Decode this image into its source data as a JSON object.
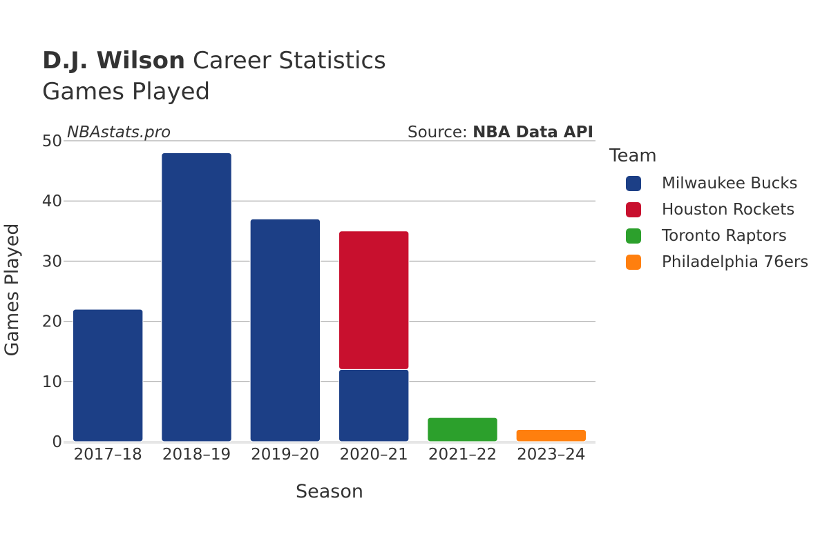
{
  "header": {
    "player_name": "D.J. Wilson",
    "title_rest": "Career Statistics",
    "subtitle": "Games Played",
    "watermark": "NBAstats.pro",
    "source_prefix": "Source:",
    "source_name": "NBA Data API"
  },
  "legend": {
    "title": "Team",
    "items": [
      {
        "label": "Milwaukee Bucks",
        "color": "#1c3f86"
      },
      {
        "label": "Houston Rockets",
        "color": "#c8102e"
      },
      {
        "label": "Toronto Raptors",
        "color": "#2ca02c"
      },
      {
        "label": "Philadelphia 76ers",
        "color": "#ff7f0e"
      }
    ]
  },
  "chart_data": {
    "type": "bar",
    "stacked": true,
    "categories": [
      "2017–18",
      "2018–19",
      "2019–20",
      "2020–21",
      "2021–22",
      "2023–24"
    ],
    "series": [
      {
        "name": "Milwaukee Bucks",
        "color": "#1c3f86",
        "values": [
          22,
          48,
          37,
          12,
          0,
          0
        ]
      },
      {
        "name": "Houston Rockets",
        "color": "#c8102e",
        "values": [
          0,
          0,
          0,
          23,
          0,
          0
        ]
      },
      {
        "name": "Toronto Raptors",
        "color": "#2ca02c",
        "values": [
          0,
          0,
          0,
          0,
          4,
          0
        ]
      },
      {
        "name": "Philadelphia 76ers",
        "color": "#ff7f0e",
        "values": [
          0,
          0,
          0,
          0,
          0,
          2
        ]
      }
    ],
    "xlabel": "Season",
    "ylabel": "Games Played",
    "ylim": [
      0,
      50
    ],
    "yticks": [
      0,
      10,
      20,
      30,
      40,
      50
    ],
    "grid": true,
    "legend_position": "right"
  }
}
